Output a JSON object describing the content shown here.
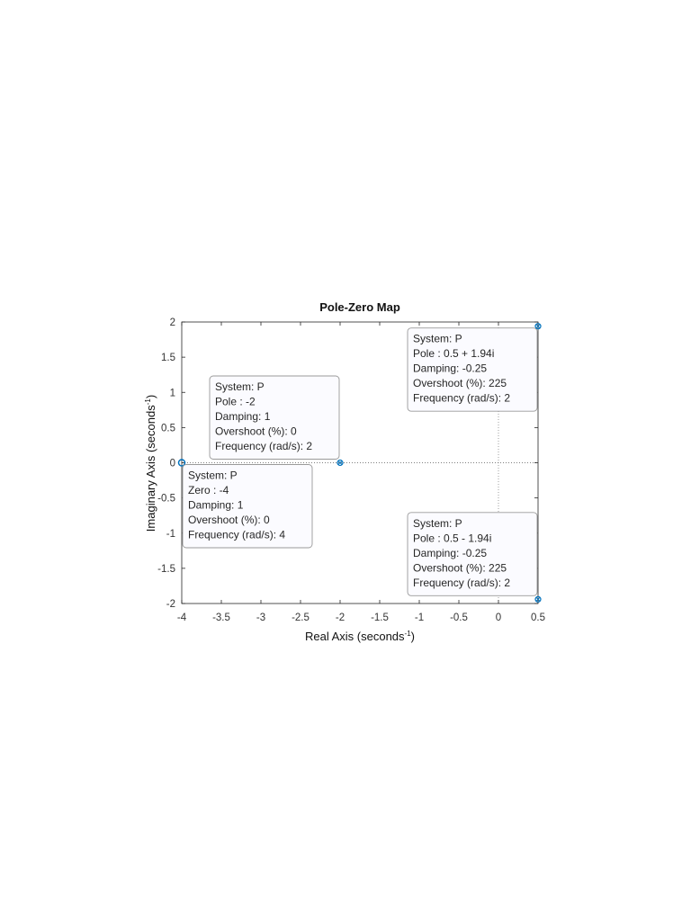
{
  "chart_data": {
    "type": "scatter",
    "title": "Pole-Zero Map",
    "xlabel": "Real Axis (seconds",
    "xlabel_sup": "-1",
    "xlabel_close": ")",
    "ylabel": "Imaginary Axis (seconds",
    "ylabel_sup": "-1",
    "ylabel_close": ")",
    "xlim": [
      -4,
      0.5
    ],
    "ylim": [
      -2,
      2
    ],
    "xticks": [
      -4,
      -3.5,
      -3,
      -2.5,
      -2,
      -1.5,
      -1,
      -0.5,
      0,
      0.5
    ],
    "xtick_labels": [
      "-4",
      "-3.5",
      "-3",
      "-2.5",
      "-2",
      "-1.5",
      "-1",
      "-0.5",
      "0",
      "0.5"
    ],
    "yticks": [
      -2,
      -1.5,
      -1,
      -0.5,
      0,
      0.5,
      1,
      1.5,
      2
    ],
    "ytick_labels": [
      "-2",
      "-1.5",
      "-1",
      "-0.5",
      "0",
      "0.5",
      "1",
      "1.5",
      "2"
    ],
    "grid": false,
    "colors": {
      "marker": "#0072BD",
      "axes": "#262626",
      "datatip_bg": "#fbfbff",
      "datatip_border": "#9a9a9a"
    },
    "series": [
      {
        "marker": "x",
        "points": [
          {
            "x": -2,
            "y": 0
          },
          {
            "x": 0.5,
            "y": 1.94
          },
          {
            "x": 0.5,
            "y": -1.94
          }
        ]
      },
      {
        "marker": "o",
        "points": [
          {
            "x": -4,
            "y": 0
          }
        ]
      }
    ],
    "datatips": [
      {
        "point": {
          "x": -2,
          "y": 0
        },
        "side": "up-left",
        "lines": [
          "System: P",
          "Pole : -2",
          "Damping: 1",
          "Overshoot (%): 0",
          "Frequency (rad/s): 2"
        ]
      },
      {
        "point": {
          "x": 0.5,
          "y": 1.94
        },
        "side": "down-left",
        "lines": [
          "System: P",
          "Pole : 0.5 + 1.94i",
          "Damping: -0.25",
          "Overshoot (%): 225",
          "Frequency (rad/s): 2"
        ]
      },
      {
        "point": {
          "x": -4,
          "y": 0
        },
        "side": "down-right",
        "lines": [
          "System: P",
          "Zero : -4",
          "Damping: 1",
          "Overshoot (%): 0",
          "Frequency (rad/s): 4"
        ]
      },
      {
        "point": {
          "x": 0.5,
          "y": -1.94
        },
        "side": "up-left",
        "lines": [
          "System: P",
          "Pole : 0.5 - 1.94i",
          "Damping: -0.25",
          "Overshoot (%): 225",
          "Frequency (rad/s): 2"
        ]
      }
    ]
  }
}
